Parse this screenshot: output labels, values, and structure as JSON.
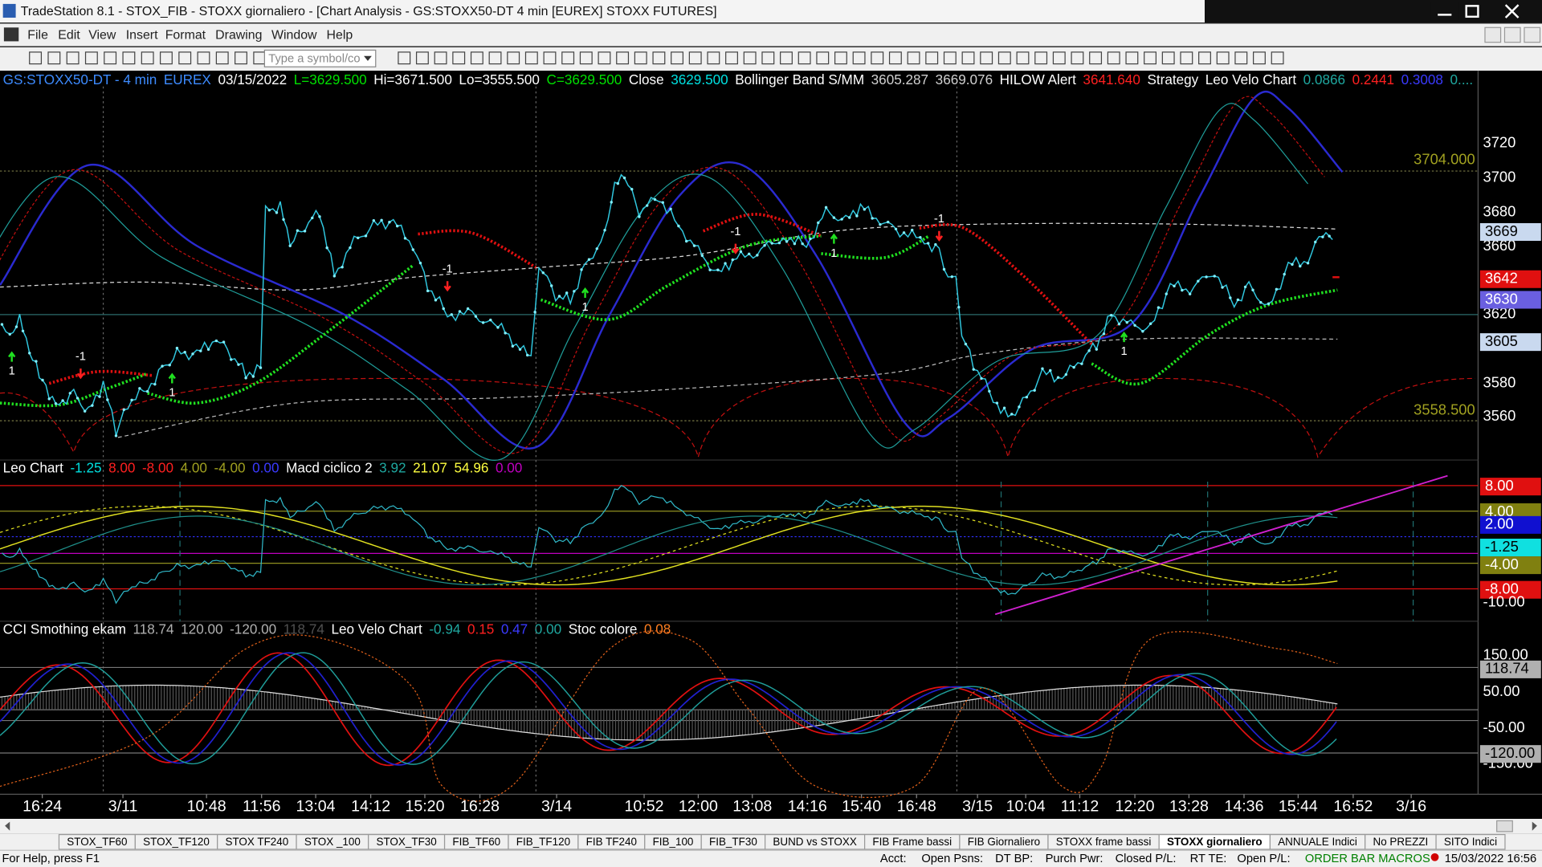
{
  "window": {
    "title": "TradeStation 8.1 - STOX_FIB - STOXX giornaliero - [Chart Analysis - GS:STOXX50-DT  4 min  [EUREX] STOXX FUTURES]"
  },
  "menu": [
    "File",
    "Edit",
    "View",
    "Insert",
    "Format",
    "Drawing",
    "Window",
    "Help"
  ],
  "toolbar": {
    "symbol_box": "Type a symbol/co"
  },
  "price_pane": {
    "header": [
      {
        "text": "GS:STOXX50-DT - 4 min",
        "color": "#3d8bff"
      },
      {
        "text": "EUREX",
        "color": "#3d8bff"
      },
      {
        "text": "03/15/2022",
        "color": "#ffffff"
      },
      {
        "text": "L=3629.500",
        "color": "#00e000"
      },
      {
        "text": "Hi=3671.500",
        "color": "#ffffff"
      },
      {
        "text": "Lo=3555.500",
        "color": "#ffffff"
      },
      {
        "text": "C=3629.500",
        "color": "#00e000"
      },
      {
        "text": "Close",
        "color": "#ffffff"
      },
      {
        "text": "3629.500",
        "color": "#00e0e0"
      },
      {
        "text": "Bollinger Band S/MM",
        "color": "#ffffff"
      },
      {
        "text": "3605.287",
        "color": "#d0d0d0"
      },
      {
        "text": "3669.076",
        "color": "#d0d0d0"
      },
      {
        "text": "HILOW Alert",
        "color": "#ffffff"
      },
      {
        "text": "3641.640",
        "color": "#ff2020"
      },
      {
        "text": "Strategy",
        "color": "#ffffff"
      },
      {
        "text": "Leo Velo Chart",
        "color": "#ffffff"
      },
      {
        "text": "0.0866",
        "color": "#1fa8a0"
      },
      {
        "text": "0.2441",
        "color": "#ff2020"
      },
      {
        "text": "0.3008",
        "color": "#3a3aff"
      },
      {
        "text": "0....",
        "color": "#1fa8a0"
      }
    ],
    "axis_labels": [
      "3720",
      "3700",
      "3680",
      "3660",
      "3620",
      "3580",
      "3560"
    ],
    "level_labels": [
      "3704.000",
      "3558.500"
    ],
    "badges": [
      {
        "text": "3669",
        "color": "#c9d9ef"
      },
      {
        "text": "3642",
        "color": "#e01010"
      },
      {
        "text": "3630",
        "color": "#6a5fe0"
      },
      {
        "text": "3605",
        "color": "#c9d9ef"
      }
    ],
    "signals": [
      "-1",
      "1",
      "1",
      "-1",
      "1",
      "-1",
      "1",
      "-1",
      "1"
    ]
  },
  "macd_pane": {
    "header": [
      {
        "text": "Leo Chart",
        "color": "#ffffff"
      },
      {
        "text": "-1.25",
        "color": "#00e0e0"
      },
      {
        "text": "8.00",
        "color": "#ff2020"
      },
      {
        "text": "-8.00",
        "color": "#ff2020"
      },
      {
        "text": "4.00",
        "color": "#a0a020"
      },
      {
        "text": "-4.00",
        "color": "#a0a020"
      },
      {
        "text": "0.00",
        "color": "#3a3aff"
      },
      {
        "text": "Macd ciclico 2",
        "color": "#ffffff"
      },
      {
        "text": "3.92",
        "color": "#1fa8a0"
      },
      {
        "text": "21.07",
        "color": "#ffff40"
      },
      {
        "text": "54.96",
        "color": "#ffff40"
      },
      {
        "text": "0.00",
        "color": "#c000c0"
      }
    ],
    "badges": [
      {
        "text": "8.00",
        "color": "#e01010"
      },
      {
        "text": "4.00",
        "color": "#808010"
      },
      {
        "text": "2.00",
        "color": "#1010d0"
      },
      {
        "text": "-1.25",
        "color": "#10e0e0"
      },
      {
        "text": "-4.00",
        "color": "#808010"
      },
      {
        "text": "-8.00",
        "color": "#e01010"
      }
    ],
    "axis_labels": [
      "-10.00"
    ]
  },
  "cci_pane": {
    "header": [
      {
        "text": "CCI Smothing ekam",
        "color": "#ffffff"
      },
      {
        "text": "118.74",
        "color": "#b0b0b0"
      },
      {
        "text": "120.00",
        "color": "#b0b0b0"
      },
      {
        "text": "-120.00",
        "color": "#b0b0b0"
      },
      {
        "text": "118.74",
        "color": "#505050"
      },
      {
        "text": "Leo Velo Chart",
        "color": "#ffffff"
      },
      {
        "text": "-0.94",
        "color": "#1fa8a0"
      },
      {
        "text": "0.15",
        "color": "#ff2020"
      },
      {
        "text": "0.47",
        "color": "#3a3aff"
      },
      {
        "text": "0.00",
        "color": "#1fa8a0"
      },
      {
        "text": "Stoc colore",
        "color": "#ffffff"
      },
      {
        "text": "0.08",
        "color": "#ff7f20"
      }
    ],
    "axis_labels": [
      "150.00",
      "50.00",
      "-50.00",
      "-150.00"
    ],
    "badges": [
      {
        "text": "118.74",
        "color": "#b0b0b0"
      },
      {
        "text": "-120.00",
        "color": "#b0b0b0"
      }
    ]
  },
  "time_axis": [
    "16:24",
    "3/11",
    "10:48",
    "11:56",
    "13:04",
    "14:12",
    "15:20",
    "16:28",
    "3/14",
    "10:52",
    "12:00",
    "13:08",
    "14:16",
    "15:40",
    "16:48",
    "3/15",
    "10:04",
    "11:12",
    "12:20",
    "13:28",
    "14:36",
    "15:44",
    "16:52",
    "3/16"
  ],
  "tabs": [
    "STOX_TF60",
    "STOX_TF120",
    "STOX TF240",
    "STOX _100",
    "STOX_TF30",
    "FIB_TF60",
    "FIB_TF120",
    "FIB TF240",
    "FIB_100",
    "FIB_TF30",
    "BUND vs STOXX",
    "FIB Frame bassi",
    "FIB Giornaliero",
    "STOXX frame bassi",
    "STOXX giornaliero",
    "ANNUALE Indici",
    "No PREZZI",
    "SITO Indici"
  ],
  "active_tab": "STOXX giornaliero",
  "status_bar": [
    "For Help, press F1",
    "Acct:",
    "Open Psns:",
    "DT BP:",
    "Purch Pwr:",
    "Closed P/L:",
    "RT TE:",
    "Open P/L:",
    "ORDER BAR MACROS",
    "15/03/2022 16:56"
  ]
}
